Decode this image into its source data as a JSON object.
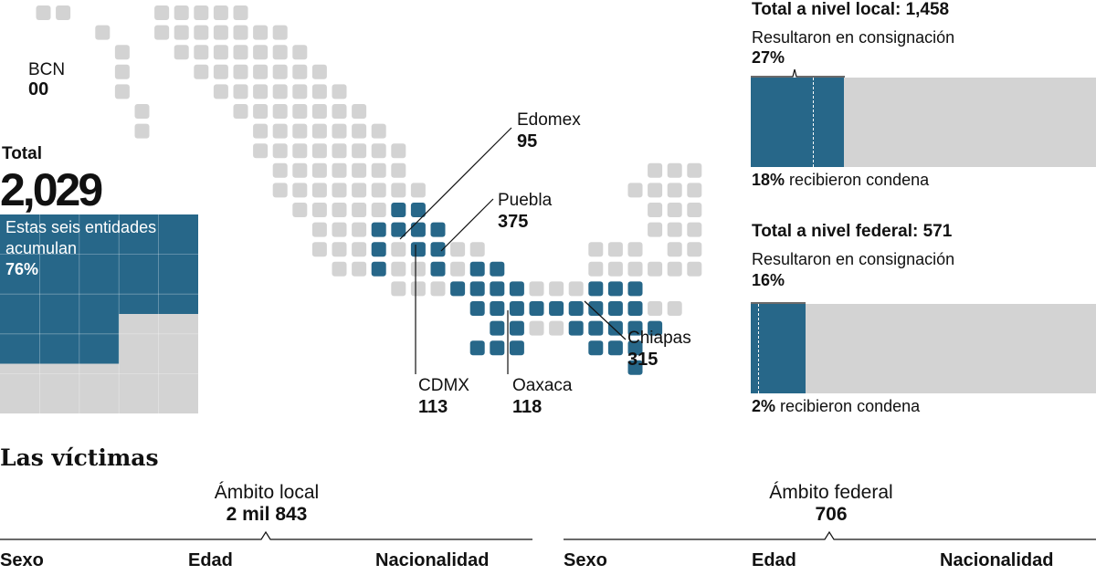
{
  "summary": {
    "total_label": "Total",
    "total_value": "2,029",
    "text_line1": "Estas seis entidades",
    "text_line2": "acumulan",
    "percent": "76%",
    "percent_value": 76
  },
  "states": [
    {
      "id": "bcn",
      "name": "BCN",
      "value": "00"
    },
    {
      "id": "edomex",
      "name": "Edomex",
      "value": "95"
    },
    {
      "id": "puebla",
      "name": "Puebla",
      "value": "375"
    },
    {
      "id": "chiapas",
      "name": "Chiapas",
      "value": "315"
    },
    {
      "id": "cdmx",
      "name": "CDMX",
      "value": "113"
    },
    {
      "id": "oaxaca",
      "name": "Oaxaca",
      "value": "118"
    }
  ],
  "local": {
    "title": "Total a nivel local: 1,458",
    "subtitle": "Resultaron en consignación",
    "consignacion_pct": "27%",
    "consignacion_value": 27,
    "condena_pct": "18%",
    "condena_value": 18,
    "condena_text": "recibieron condena"
  },
  "federal": {
    "title": "Total a nivel federal: 571",
    "subtitle": "Resultaron en consignación",
    "consignacion_pct": "16%",
    "consignacion_value": 16,
    "condena_pct": "2%",
    "condena_value": 2,
    "condena_text": "recibieron condena"
  },
  "victimas": {
    "title": "Las víctimas",
    "local": {
      "title": "Ámbito local",
      "value": "2 mil 843",
      "columns": [
        "Sexo",
        "Edad",
        "Nacionalidad"
      ]
    },
    "federal": {
      "title": "Ámbito federal",
      "value": "706",
      "columns": [
        "Sexo",
        "Edad",
        "Nacionalidad"
      ]
    }
  },
  "colors": {
    "highlight": "#276789",
    "base": "#d3d3d3",
    "ink": "#111111"
  },
  "chart_data": [
    {
      "type": "bar",
      "categories": [
        "Resultaron en consignación",
        "recibieron condena"
      ],
      "values": [
        27,
        18
      ],
      "title": "Total a nivel local: 1,458"
    },
    {
      "type": "bar",
      "categories": [
        "Resultaron en consignación",
        "recibieron condena"
      ],
      "values": [
        16,
        2
      ],
      "title": "Total a nivel federal: 571"
    },
    {
      "type": "map",
      "categories": [
        "BCN",
        "Edomex",
        "Puebla",
        "Chiapas",
        "CDMX",
        "Oaxaca"
      ],
      "values": [
        "00",
        95,
        375,
        315,
        113,
        118
      ]
    }
  ]
}
